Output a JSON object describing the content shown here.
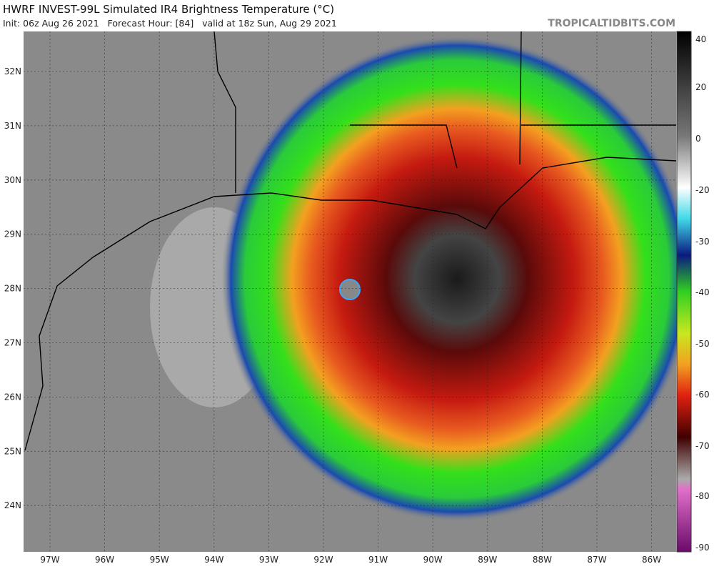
{
  "header": {
    "title": "HWRF INVEST-99L Simulated IR4 Brightness Temperature (°C)",
    "subtitle": "Init: 06z Aug 26 2021   Forecast Hour: [84]   valid at 18z Sun, Aug 29 2021",
    "source": "TROPICALTIDBITS.COM"
  },
  "map": {
    "lat_labels": [
      "32N",
      "31N",
      "30N",
      "29N",
      "28N",
      "27N",
      "26N",
      "25N",
      "24N"
    ],
    "lon_labels": [
      "97W",
      "96W",
      "95W",
      "94W",
      "93W",
      "92W",
      "91W",
      "90W",
      "89W",
      "88W",
      "87W",
      "86W"
    ]
  },
  "colorbar": {
    "labels": [
      "40",
      "20",
      "0",
      "-20",
      "-30",
      "-40",
      "-50",
      "-60",
      "-70",
      "-80",
      "-90"
    ]
  }
}
